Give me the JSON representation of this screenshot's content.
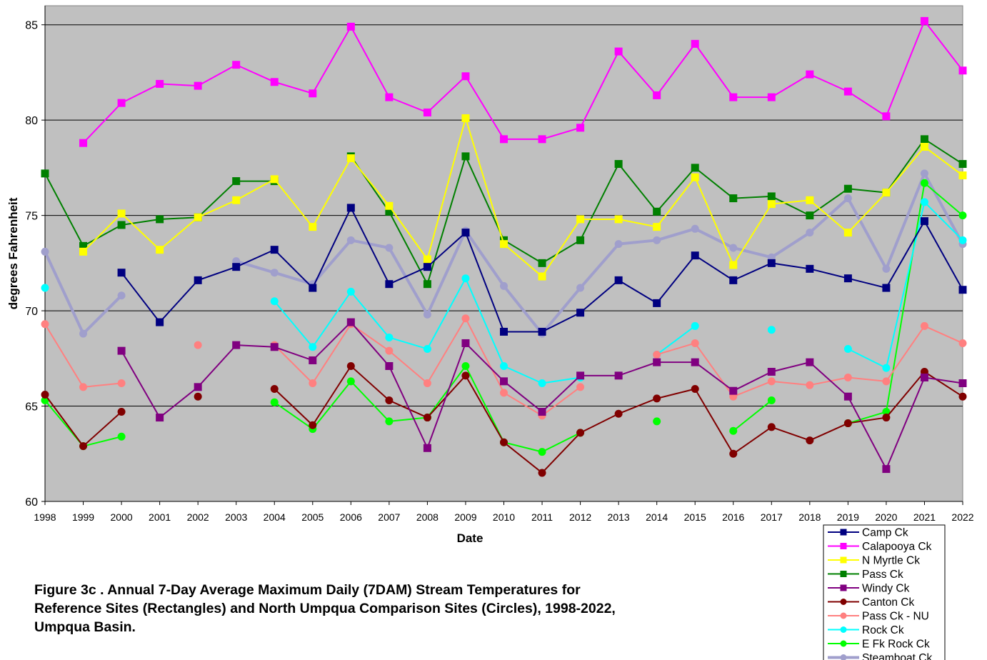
{
  "chart_data": {
    "type": "line",
    "title": [
      "Figure 3c .  Annual 7-Day Average Maximum Daily (7DAM) Stream Temperatures for",
      "Reference Sites (Rectangles) and North Umpqua Comparison Sites (Circles), 1998-2022,",
      "Umpqua Basin."
    ],
    "x_label": "Date",
    "y_label": "degrees Fahrenheit",
    "categories": [
      "1998",
      "1999",
      "2000",
      "2001",
      "2002",
      "2003",
      "2004",
      "2005",
      "2006",
      "2007",
      "2008",
      "2009",
      "2010",
      "2011",
      "2012",
      "2013",
      "2014",
      "2015",
      "2016",
      "2017",
      "2018",
      "2019",
      "2020",
      "2021",
      "2022"
    ],
    "ylim": [
      60,
      86
    ],
    "yticks": [
      60,
      65,
      70,
      75,
      80,
      85
    ],
    "grid": true,
    "background": "#c0c0c0",
    "legend": "bottom-right",
    "series": [
      {
        "name": "Camp Ck",
        "color": "#000080",
        "marker": "square",
        "line_width": 2,
        "values": [
          null,
          null,
          72.0,
          69.4,
          71.6,
          72.3,
          73.2,
          71.2,
          75.4,
          71.4,
          72.3,
          74.1,
          68.9,
          68.9,
          69.9,
          71.6,
          70.4,
          72.9,
          71.6,
          72.5,
          72.2,
          71.7,
          71.2,
          74.7,
          71.1
        ]
      },
      {
        "name": "Calapooya Ck",
        "color": "#ff00ff",
        "marker": "square",
        "line_width": 2,
        "values": [
          null,
          78.8,
          80.9,
          81.9,
          81.8,
          82.9,
          82.0,
          81.4,
          84.9,
          81.2,
          80.4,
          82.3,
          79.0,
          79.0,
          79.6,
          83.6,
          81.3,
          84.0,
          81.2,
          81.2,
          82.4,
          81.5,
          80.2,
          85.2,
          82.6
        ]
      },
      {
        "name": "N Myrtle Ck",
        "color": "#ffff00",
        "marker": "square",
        "line_width": 2,
        "values": [
          null,
          73.1,
          75.1,
          73.2,
          74.9,
          75.8,
          76.9,
          74.4,
          78.0,
          75.5,
          72.7,
          80.1,
          73.5,
          71.8,
          74.8,
          74.8,
          74.4,
          77.0,
          72.4,
          75.6,
          75.8,
          74.1,
          76.2,
          78.6,
          77.1
        ]
      },
      {
        "name": "Pass Ck",
        "color": "#008000",
        "marker": "square",
        "line_width": 2,
        "values": [
          77.2,
          73.4,
          74.5,
          74.8,
          74.9,
          76.8,
          76.8,
          null,
          78.1,
          75.2,
          71.4,
          78.1,
          73.7,
          72.5,
          73.7,
          77.7,
          75.2,
          77.5,
          75.9,
          76.0,
          75.0,
          76.4,
          76.2,
          79.0,
          77.7
        ]
      },
      {
        "name": "Windy Ck",
        "color": "#800080",
        "marker": "square",
        "line_width": 2,
        "values": [
          null,
          null,
          67.9,
          64.4,
          66.0,
          68.2,
          68.1,
          67.4,
          69.4,
          67.1,
          62.8,
          68.3,
          66.3,
          64.7,
          66.6,
          66.6,
          67.3,
          67.3,
          65.8,
          66.8,
          67.3,
          65.5,
          61.7,
          66.5,
          66.2
        ]
      },
      {
        "name": "Canton Ck",
        "color": "#800000",
        "marker": "circle",
        "line_width": 2,
        "values": [
          65.6,
          62.9,
          64.7,
          null,
          65.5,
          null,
          65.9,
          64.0,
          67.1,
          65.3,
          64.4,
          66.6,
          63.1,
          61.5,
          63.6,
          64.6,
          65.4,
          65.9,
          62.5,
          63.9,
          63.2,
          64.1,
          64.4,
          66.8,
          65.5
        ]
      },
      {
        "name": "Pass Ck - NU",
        "color": "#ff8080",
        "marker": "circle",
        "line_width": 2,
        "values": [
          69.3,
          66.0,
          66.2,
          null,
          68.2,
          null,
          68.2,
          66.2,
          69.3,
          67.9,
          66.2,
          69.6,
          65.7,
          64.5,
          66.0,
          null,
          67.7,
          68.3,
          65.5,
          66.3,
          66.1,
          66.5,
          66.3,
          69.2,
          68.3
        ]
      },
      {
        "name": "Rock Ck",
        "color": "#00ffff",
        "marker": "circle",
        "line_width": 2,
        "values": [
          71.2,
          null,
          null,
          null,
          null,
          null,
          70.5,
          68.1,
          71.0,
          68.6,
          68.0,
          71.7,
          67.1,
          66.2,
          66.5,
          null,
          67.7,
          69.2,
          null,
          69.0,
          null,
          68.0,
          67.0,
          75.7,
          73.7
        ]
      },
      {
        "name": "E Fk Rock Ck",
        "color": "#00ff00",
        "marker": "circle",
        "line_width": 2,
        "values": [
          65.3,
          62.9,
          63.4,
          null,
          null,
          null,
          65.2,
          63.8,
          66.3,
          64.2,
          64.4,
          67.1,
          63.1,
          62.6,
          63.6,
          null,
          64.2,
          null,
          63.7,
          65.3,
          null,
          64.1,
          64.7,
          76.7,
          75.0
        ]
      },
      {
        "name": "Steamboat Ck",
        "color": "#a09fcc",
        "marker": "circle",
        "line_width": 4,
        "values": [
          73.1,
          68.8,
          70.8,
          null,
          null,
          72.6,
          72.0,
          71.4,
          73.7,
          73.3,
          69.8,
          74.2,
          71.3,
          68.8,
          71.2,
          73.5,
          73.7,
          74.3,
          73.3,
          72.8,
          74.1,
          75.9,
          72.2,
          77.2,
          73.5
        ]
      }
    ]
  }
}
